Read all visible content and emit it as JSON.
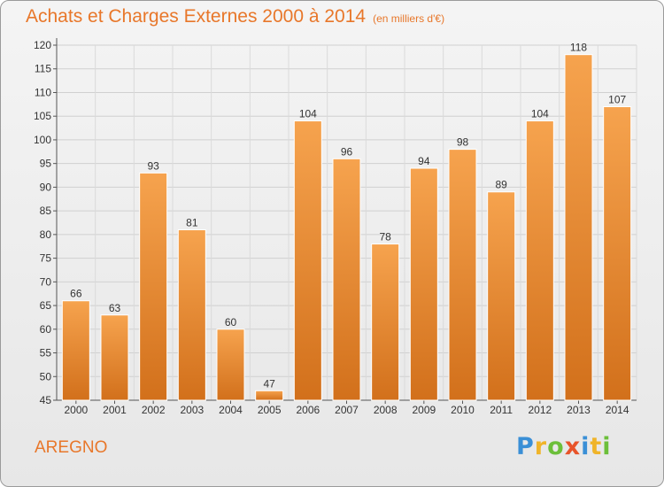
{
  "header": {
    "title": "Achats et Charges Externes 2000 à 2014",
    "subtitle": "(en milliers d'€)"
  },
  "footer": {
    "commune": "AREGNO",
    "logo": "Proxiti",
    "logo_colors": [
      "#3a8fd6",
      "#f0b429",
      "#6cbf3a",
      "#e8542a",
      "#3a8fd6",
      "#f0b429",
      "#6cbf3a"
    ]
  },
  "colors": {
    "accent": "#e8772a",
    "bar_top": "#f6a34e",
    "bar_bottom": "#d2701b"
  },
  "chart_data": {
    "type": "bar",
    "categories": [
      "2000",
      "2001",
      "2002",
      "2003",
      "2004",
      "2005",
      "2006",
      "2007",
      "2008",
      "2009",
      "2010",
      "2011",
      "2012",
      "2013",
      "2014"
    ],
    "values": [
      66,
      63,
      93,
      81,
      60,
      47,
      104,
      96,
      78,
      94,
      98,
      89,
      104,
      118,
      107
    ],
    "ylim": [
      45,
      120
    ],
    "yticks": [
      45,
      50,
      55,
      60,
      65,
      70,
      75,
      80,
      85,
      90,
      95,
      100,
      105,
      110,
      115,
      120
    ],
    "grid": true
  }
}
